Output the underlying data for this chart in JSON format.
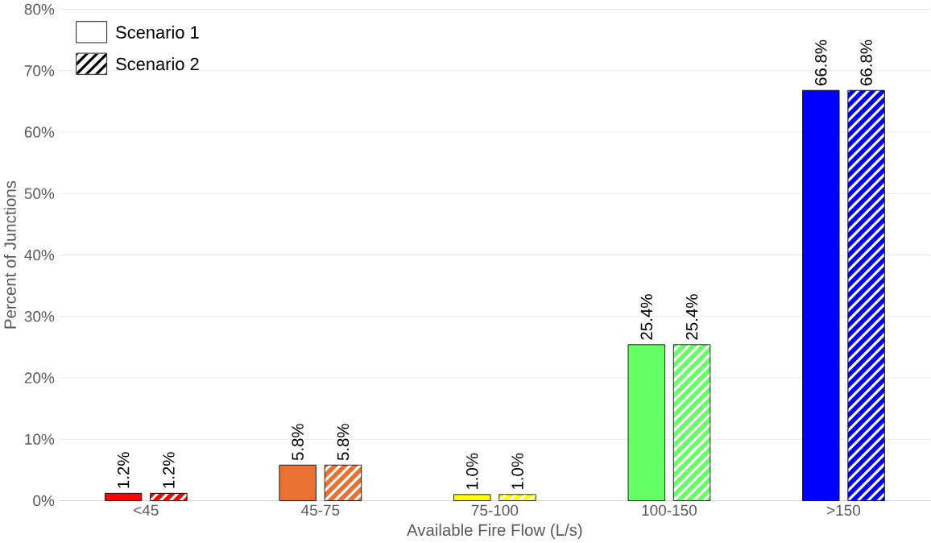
{
  "chart_data": {
    "type": "bar",
    "xlabel": "Available Fire Flow (L/s)",
    "ylabel": "Percent of Junctions",
    "categories": [
      "<45",
      "45-75",
      "75-100",
      "100-150",
      ">150"
    ],
    "series": [
      {
        "name": "Scenario 1",
        "values": [
          1.2,
          5.8,
          1.0,
          25.4,
          66.8
        ],
        "colors": [
          "#ff0000",
          "#e97132",
          "#ffff00",
          "#66ff66",
          "#0000ff"
        ],
        "value_labels": [
          "1.2%",
          "5.8%",
          "1.0%",
          "25.4%",
          "66.8%"
        ]
      },
      {
        "name": "Scenario 2",
        "values": [
          1.2,
          5.8,
          1.0,
          25.4,
          66.8
        ],
        "colors": [
          "#ff0000",
          "#e97132",
          "#ffff00",
          "#66ff66",
          "#0000ff"
        ],
        "value_labels": [
          "1.2%",
          "5.8%",
          "1.0%",
          "25.4%",
          "66.8%"
        ]
      }
    ],
    "ylim": [
      0,
      80
    ],
    "yticks": [
      {
        "value": 0,
        "label": "0%"
      },
      {
        "value": 10,
        "label": "10%"
      },
      {
        "value": 20,
        "label": "20%"
      },
      {
        "value": 30,
        "label": "30%"
      },
      {
        "value": 40,
        "label": "40%"
      },
      {
        "value": 50,
        "label": "50%"
      },
      {
        "value": 60,
        "label": "60%"
      },
      {
        "value": 70,
        "label": "70%"
      },
      {
        "value": 80,
        "label": "80%"
      }
    ],
    "grid": "y",
    "legend": "top left"
  }
}
